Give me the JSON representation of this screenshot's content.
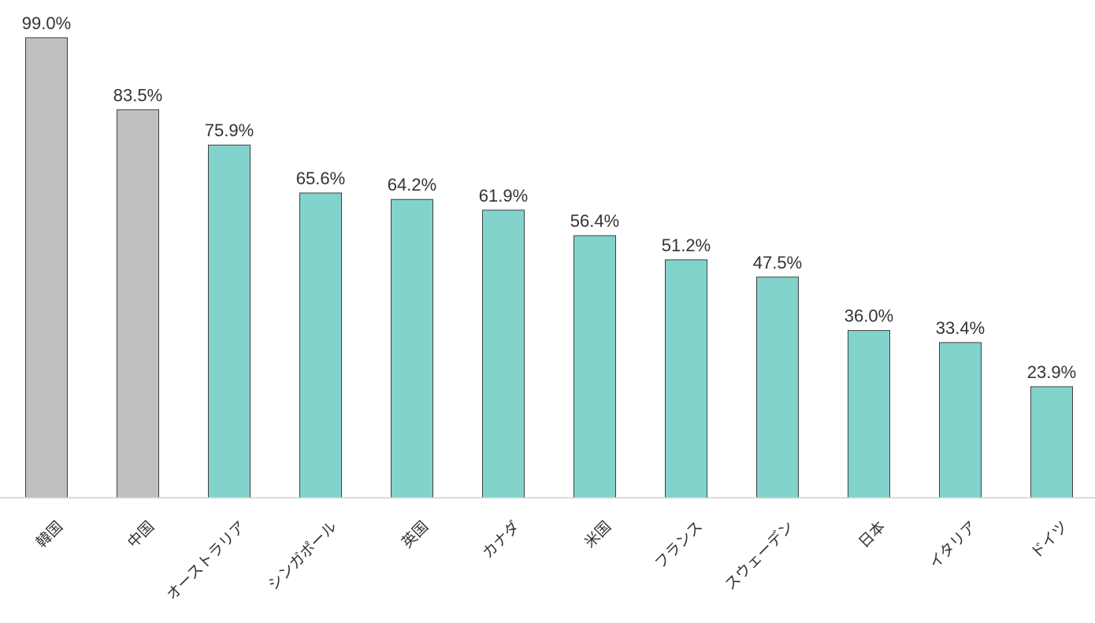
{
  "chart_data": {
    "type": "bar",
    "title": "",
    "xlabel": "",
    "ylabel": "",
    "ylim": [
      0,
      100
    ],
    "grid": false,
    "legend": "none",
    "value_suffix": "%",
    "categories": [
      "韓国",
      "中国",
      "オーストラリア",
      "シンガポール",
      "英国",
      "カナダ",
      "米国",
      "フランス",
      "スウェーデン",
      "日本",
      "イタリア",
      "ドイツ"
    ],
    "values": [
      99.0,
      83.5,
      75.9,
      65.6,
      64.2,
      61.9,
      56.4,
      51.2,
      47.5,
      36.0,
      33.4,
      23.9
    ],
    "value_labels": [
      "99.0%",
      "83.5%",
      "75.9%",
      "65.6%",
      "64.2%",
      "61.9%",
      "56.4%",
      "51.2%",
      "47.5%",
      "36.0%",
      "33.4%",
      "23.9%"
    ],
    "bar_colors": [
      "#c0c0c0",
      "#c0c0c0",
      "#82d3cc",
      "#82d3cc",
      "#82d3cc",
      "#82d3cc",
      "#82d3cc",
      "#82d3cc",
      "#82d3cc",
      "#82d3cc",
      "#82d3cc",
      "#82d3cc"
    ]
  }
}
